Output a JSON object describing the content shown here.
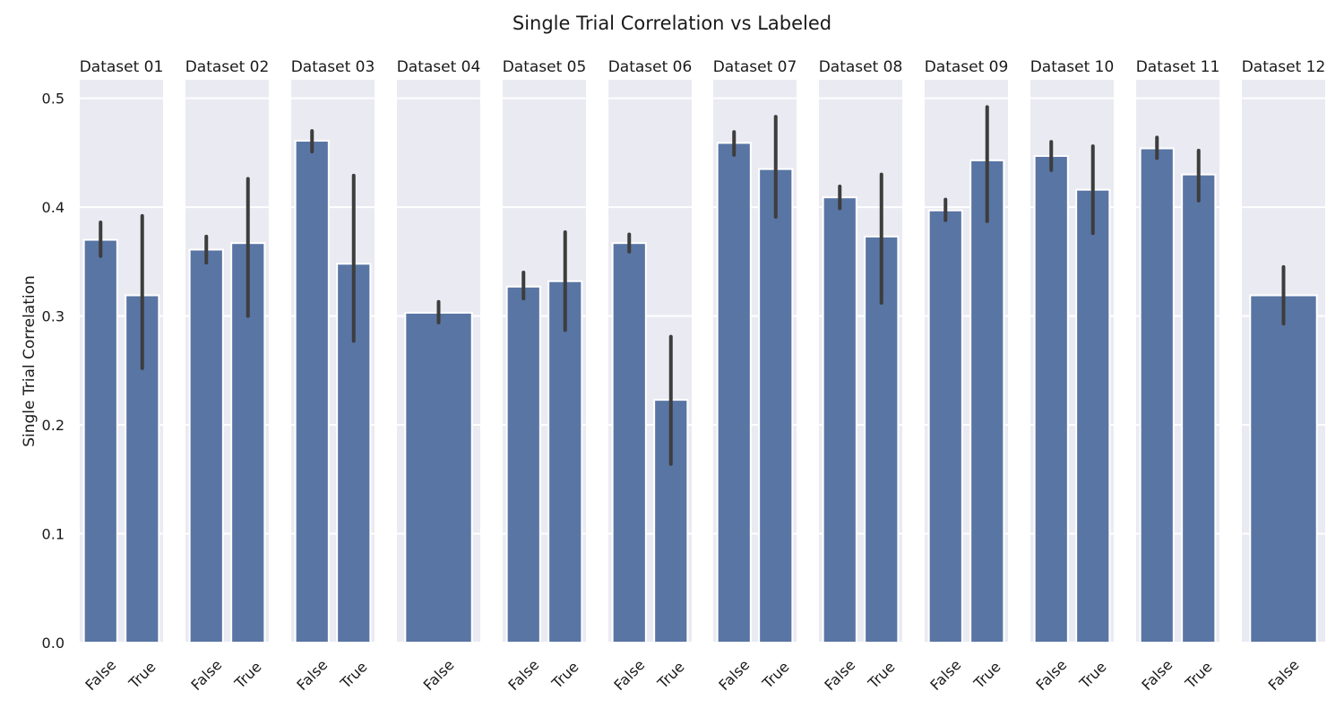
{
  "chart_data": {
    "type": "bar",
    "title": "Single Trial Correlation vs Labeled",
    "ylabel": "Single Trial Correlation",
    "xlabel": "",
    "ylim": [
      0,
      0.517
    ],
    "yticks": [
      0.0,
      0.1,
      0.2,
      0.3,
      0.4,
      0.5
    ],
    "ytick_labels": [
      "0.0",
      "0.1",
      "0.2",
      "0.3",
      "0.4",
      "0.5"
    ],
    "grid": true,
    "legend": "none",
    "colors": {
      "bar": "#5975a4",
      "bar_edge": "#ffffff",
      "error_bar": "#3d3d3d",
      "panel_background": "#eaeaf2",
      "grid": "#ffffff"
    },
    "panels": [
      {
        "title": "Dataset 01",
        "categories": [
          "False",
          "True"
        ],
        "values": [
          0.37,
          0.319
        ],
        "error_low": [
          0.355,
          0.252
        ],
        "error_high": [
          0.386,
          0.392
        ]
      },
      {
        "title": "Dataset 02",
        "categories": [
          "False",
          "True"
        ],
        "values": [
          0.361,
          0.367
        ],
        "error_low": [
          0.349,
          0.3
        ],
        "error_high": [
          0.373,
          0.426
        ]
      },
      {
        "title": "Dataset 03",
        "categories": [
          "False",
          "True"
        ],
        "values": [
          0.461,
          0.348
        ],
        "error_low": [
          0.451,
          0.277
        ],
        "error_high": [
          0.47,
          0.429
        ]
      },
      {
        "title": "Dataset 04",
        "categories": [
          "False"
        ],
        "values": [
          0.303
        ],
        "error_low": [
          0.294
        ],
        "error_high": [
          0.313
        ]
      },
      {
        "title": "Dataset 05",
        "categories": [
          "False",
          "True"
        ],
        "values": [
          0.327,
          0.332
        ],
        "error_low": [
          0.316,
          0.287
        ],
        "error_high": [
          0.34,
          0.377
        ]
      },
      {
        "title": "Dataset 06",
        "categories": [
          "False",
          "True"
        ],
        "values": [
          0.367,
          0.223
        ],
        "error_low": [
          0.359,
          0.164
        ],
        "error_high": [
          0.375,
          0.281
        ]
      },
      {
        "title": "Dataset 07",
        "categories": [
          "False",
          "True"
        ],
        "values": [
          0.459,
          0.435
        ],
        "error_low": [
          0.448,
          0.391
        ],
        "error_high": [
          0.469,
          0.483
        ]
      },
      {
        "title": "Dataset 08",
        "categories": [
          "False",
          "True"
        ],
        "values": [
          0.409,
          0.373
        ],
        "error_low": [
          0.399,
          0.312
        ],
        "error_high": [
          0.419,
          0.43
        ]
      },
      {
        "title": "Dataset 09",
        "categories": [
          "False",
          "True"
        ],
        "values": [
          0.397,
          0.443
        ],
        "error_low": [
          0.388,
          0.387
        ],
        "error_high": [
          0.407,
          0.492
        ]
      },
      {
        "title": "Dataset 10",
        "categories": [
          "False",
          "True"
        ],
        "values": [
          0.447,
          0.416
        ],
        "error_low": [
          0.434,
          0.376
        ],
        "error_high": [
          0.46,
          0.456
        ]
      },
      {
        "title": "Dataset 11",
        "categories": [
          "False",
          "True"
        ],
        "values": [
          0.454,
          0.43
        ],
        "error_low": [
          0.445,
          0.406
        ],
        "error_high": [
          0.464,
          0.452
        ]
      },
      {
        "title": "Dataset 12",
        "categories": [
          "False"
        ],
        "values": [
          0.319
        ],
        "error_low": [
          0.293
        ],
        "error_high": [
          0.345
        ]
      }
    ]
  }
}
